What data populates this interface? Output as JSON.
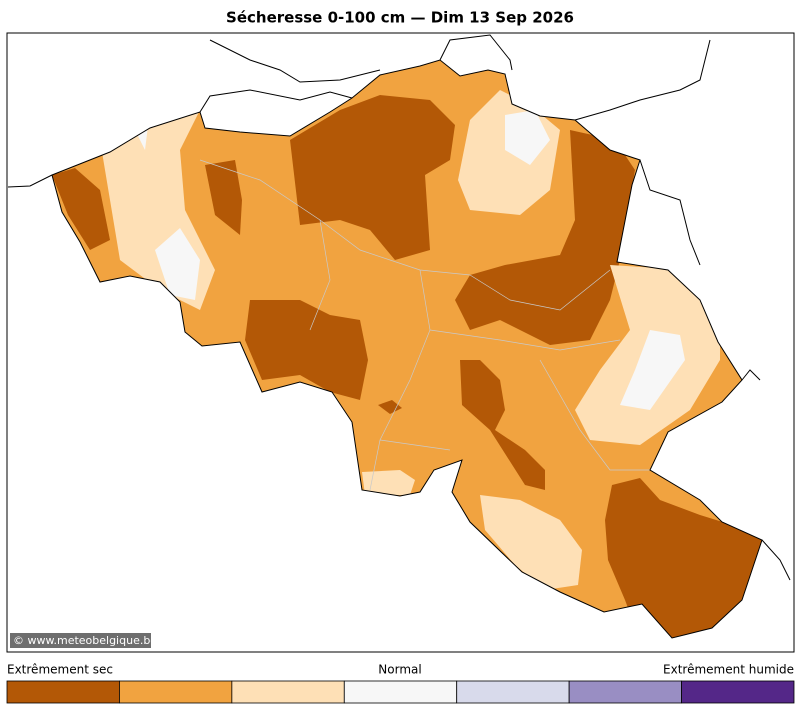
{
  "title": "Sécheresse 0-100 cm  —  Dim 13 Sep 2026",
  "watermark": "© www.meteobelgique.be",
  "legend": {
    "labels": [
      "Extrêmement sec",
      "Normal",
      "Extrêmement humide"
    ],
    "colors": [
      "#b35806",
      "#f1a340",
      "#fee0b6",
      "#f7f7f7",
      "#d8daeb",
      "#998ec3",
      "#542788"
    ]
  }
}
